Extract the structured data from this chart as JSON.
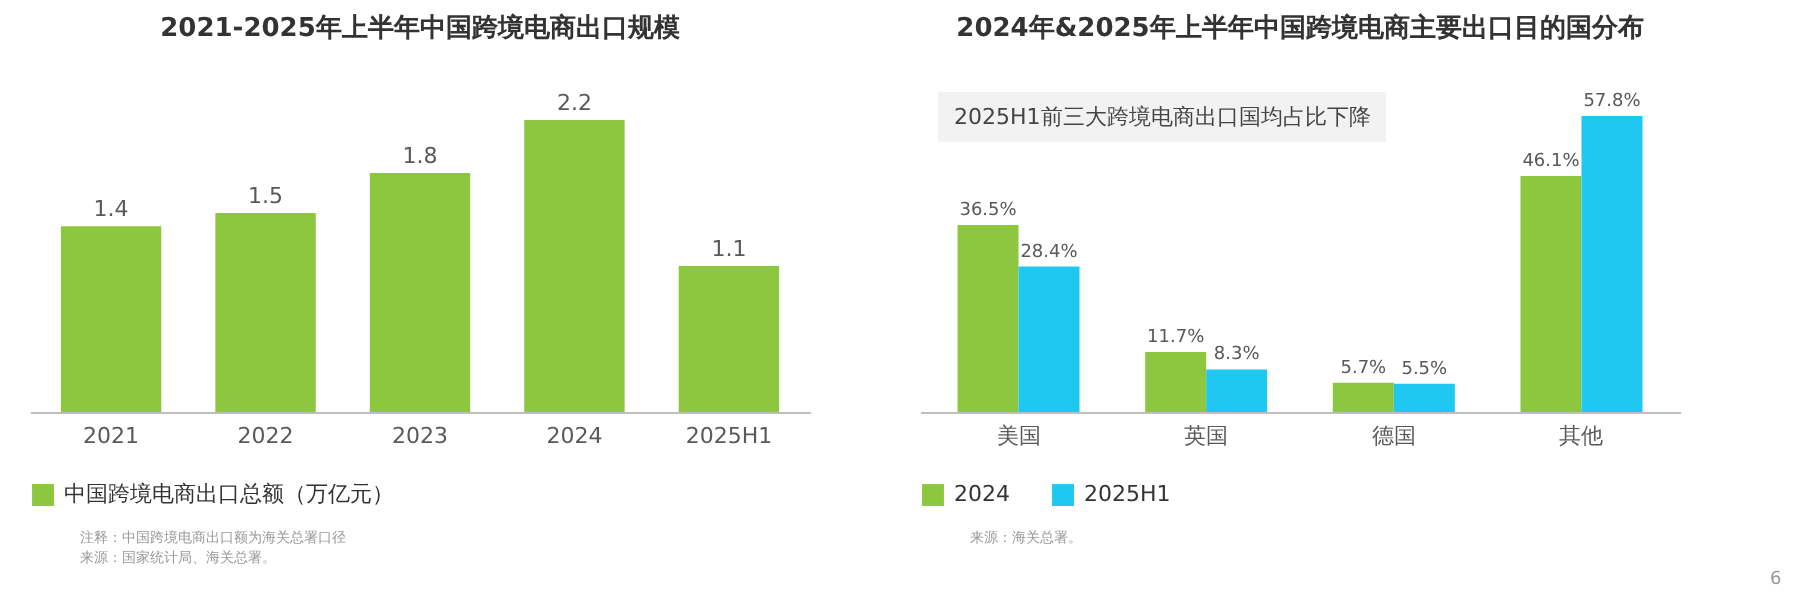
{
  "chart_data": [
    {
      "type": "bar",
      "title": "2021-2025年上半年中国跨境电商出口规模",
      "categories": [
        "2021",
        "2022",
        "2023",
        "2024",
        "2025H1"
      ],
      "series": [
        {
          "name": "中国跨境电商出口总额（万亿元）",
          "color": "#8dc63f",
          "values": [
            1.4,
            1.5,
            1.8,
            2.2,
            1.1
          ]
        }
      ],
      "data_labels": true,
      "legend": "bottom",
      "tick_labels": "x",
      "annotations": [
        "注释：中国跨境电商出口额为海关总署口径",
        "来源：国家统计局、海关总署。"
      ]
    },
    {
      "type": "bar",
      "title": "2024年&2025年上半年中国跨境电商主要出口目的国分布",
      "categories": [
        "美国",
        "英国",
        "德国",
        "其他"
      ],
      "series": [
        {
          "name": "2024",
          "color": "#8dc63f",
          "values": [
            36.5,
            11.7,
            5.7,
            46.1
          ],
          "value_labels": [
            "36.5%",
            "11.7%",
            "5.7%",
            "46.1%"
          ]
        },
        {
          "name": "2025H1",
          "color": "#1fc8f0",
          "values": [
            28.4,
            8.3,
            5.5,
            57.8
          ],
          "value_labels": [
            "28.4%",
            "8.3%",
            "5.5%",
            "57.8%"
          ]
        }
      ],
      "legend": "bottom",
      "tick_labels": "x",
      "annotations": [
        "2025H1前三大跨境电商出口国均占比下降",
        "来源：海关总署。",
        "6"
      ]
    }
  ]
}
